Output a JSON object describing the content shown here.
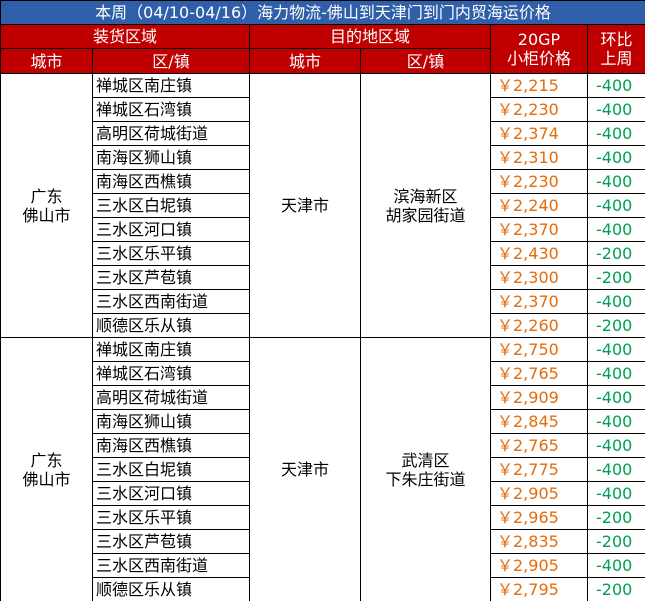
{
  "title": "本周（04/10-04/16）海力物流-佛山到天津门到门内贸海运价格",
  "header": {
    "origin_group": "装货区域",
    "dest_group": "目的地区域",
    "price": [
      "20GP",
      "小柜价格"
    ],
    "change": [
      "环比",
      "上周"
    ],
    "origin_city": "城市",
    "origin_district": "区/镇",
    "dest_city": "城市",
    "dest_district": "区/镇"
  },
  "groups": [
    {
      "origin_city": [
        "广东",
        "佛山市"
      ],
      "dest_city": "天津市",
      "dest_district": [
        "滨海新区",
        "胡家园街道"
      ],
      "rows": [
        [
          "禅城区南庄镇",
          "￥2,215",
          "-400"
        ],
        [
          "禅城区石湾镇",
          "￥2,230",
          "-400"
        ],
        [
          "高明区荷城街道",
          "￥2,374",
          "-400"
        ],
        [
          "南海区狮山镇",
          "￥2,310",
          "-400"
        ],
        [
          "南海区西樵镇",
          "￥2,230",
          "-400"
        ],
        [
          "三水区白坭镇",
          "￥2,240",
          "-400"
        ],
        [
          "三水区河口镇",
          "￥2,370",
          "-400"
        ],
        [
          "三水区乐平镇",
          "￥2,430",
          "-200"
        ],
        [
          "三水区芦苞镇",
          "￥2,300",
          "-200"
        ],
        [
          "三水区西南街道",
          "￥2,370",
          "-400"
        ],
        [
          "顺德区乐从镇",
          "￥2,260",
          "-200"
        ]
      ]
    },
    {
      "origin_city": [
        "广东",
        "佛山市"
      ],
      "dest_city": "天津市",
      "dest_district": [
        "武清区",
        "下朱庄街道"
      ],
      "rows": [
        [
          "禅城区南庄镇",
          "￥2,750",
          "-400"
        ],
        [
          "禅城区石湾镇",
          "￥2,765",
          "-400"
        ],
        [
          "高明区荷城街道",
          "￥2,909",
          "-400"
        ],
        [
          "南海区狮山镇",
          "￥2,845",
          "-400"
        ],
        [
          "南海区西樵镇",
          "￥2,765",
          "-400"
        ],
        [
          "三水区白坭镇",
          "￥2,775",
          "-400"
        ],
        [
          "三水区河口镇",
          "￥2,905",
          "-400"
        ],
        [
          "三水区乐平镇",
          "￥2,965",
          "-200"
        ],
        [
          "三水区芦苞镇",
          "￥2,835",
          "-200"
        ],
        [
          "三水区西南街道",
          "￥2,905",
          "-400"
        ],
        [
          "顺德区乐从镇",
          "￥2,795",
          "-200"
        ]
      ]
    }
  ]
}
